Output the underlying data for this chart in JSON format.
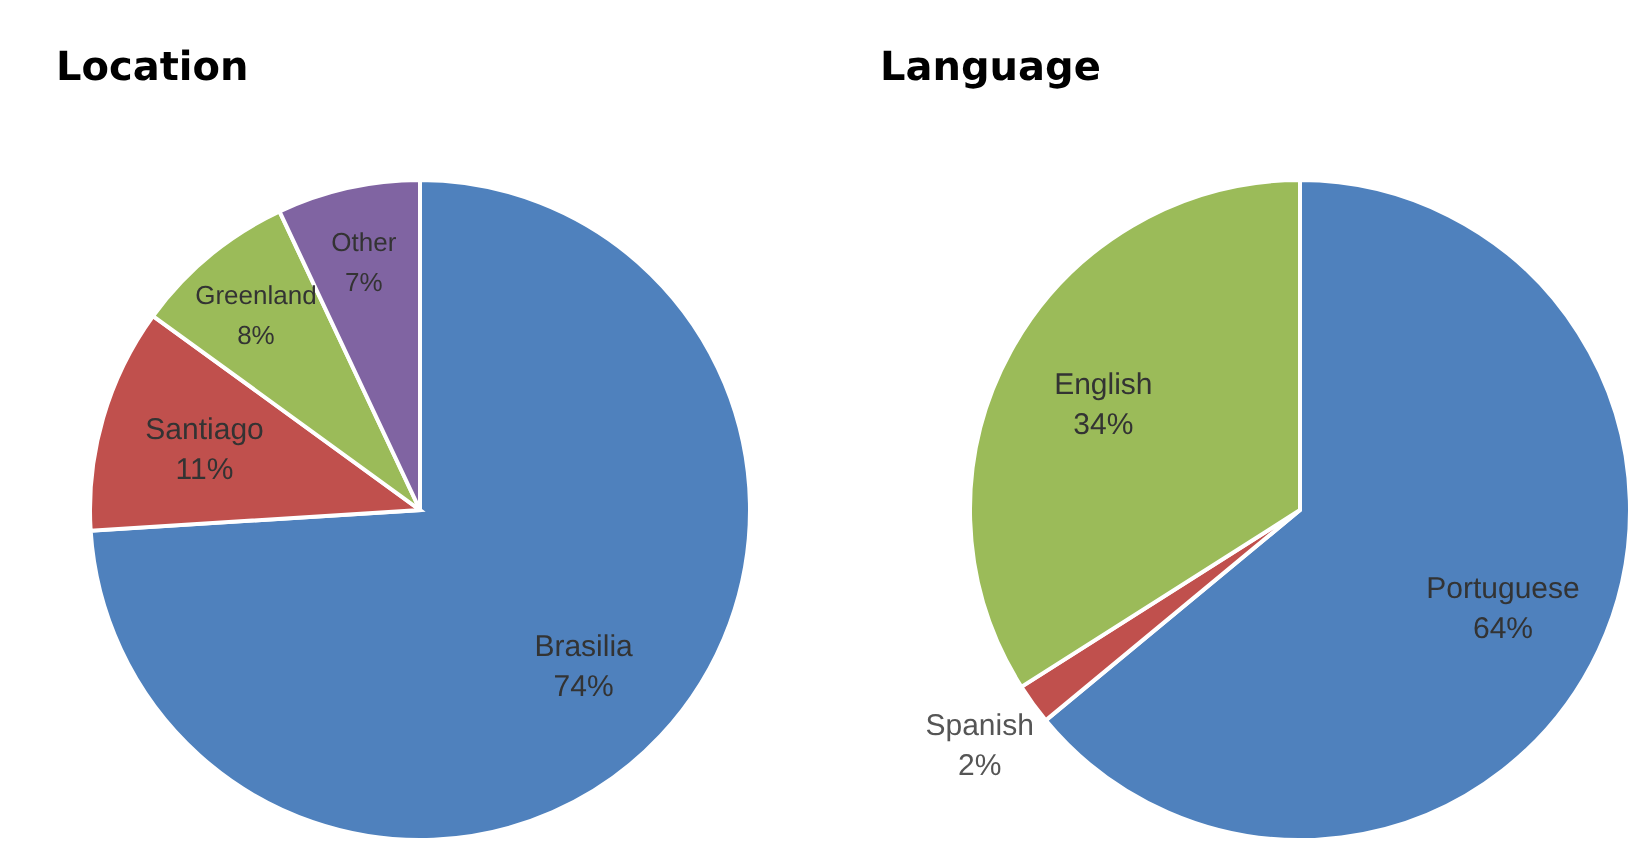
{
  "chart_data": [
    {
      "type": "pie",
      "title": "Location",
      "categories": [
        "Brasilia",
        "Santiago",
        "Greenland",
        "Other"
      ],
      "values": [
        74,
        11,
        8,
        7
      ],
      "value_labels": [
        "74%",
        "11%",
        "8%",
        "7%"
      ],
      "colors": [
        "#4f81bd",
        "#c0504d",
        "#9bbb59",
        "#8064a2"
      ]
    },
    {
      "type": "pie",
      "title": "Language",
      "categories": [
        "Portuguese",
        "Spanish",
        "English"
      ],
      "values": [
        64,
        2,
        34
      ],
      "value_labels": [
        "64%",
        "2%",
        "34%"
      ],
      "colors": [
        "#4f81bd",
        "#c0504d",
        "#9bbb59"
      ]
    }
  ]
}
